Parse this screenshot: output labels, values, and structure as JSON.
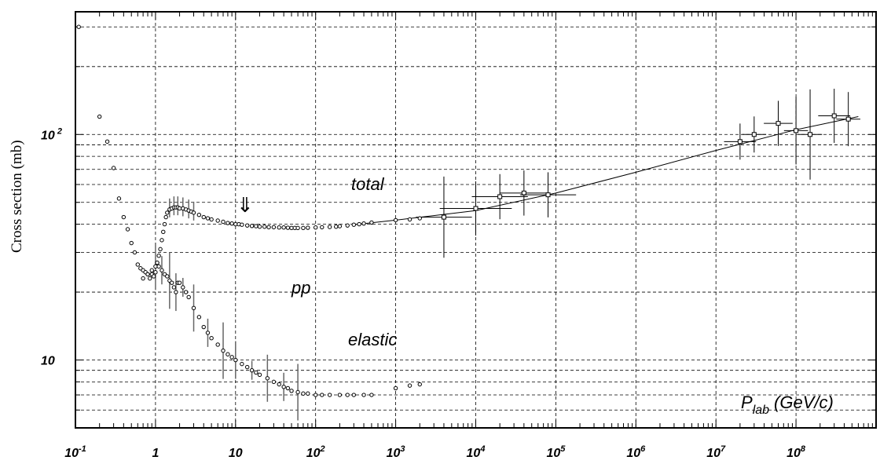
{
  "chart_data": {
    "type": "scatter",
    "ylabel": "Cross section (mb)",
    "xscale": "log",
    "yscale": "log",
    "xlim": [
      0.1,
      1000000000
    ],
    "ylim": [
      5,
      350
    ],
    "grid": true,
    "x_ticks": [
      {
        "base": "10",
        "exp": "-1"
      },
      {
        "base": "1",
        "exp": ""
      },
      {
        "base": "10",
        "exp": ""
      },
      {
        "base": "10",
        "exp": "2"
      },
      {
        "base": "10",
        "exp": "3"
      },
      {
        "base": "10",
        "exp": "4"
      },
      {
        "base": "10",
        "exp": "5"
      },
      {
        "base": "10",
        "exp": "6"
      },
      {
        "base": "10",
        "exp": "7"
      },
      {
        "base": "10",
        "exp": "8"
      }
    ],
    "y_ticks": [
      {
        "base": "10",
        "exp": " 2",
        "value": 100
      },
      {
        "base": "10",
        "exp": "",
        "value": 10
      }
    ],
    "annotations": {
      "total": "total",
      "pp": "pp",
      "elastic": "elastic",
      "xaxis_var": "P",
      "xaxis_sub": "lab",
      "xaxis_unit": "(GeV/c)",
      "arrow": "⇓"
    },
    "series": [
      {
        "key": "total",
        "points": [
          [
            0.11,
            300
          ],
          [
            0.2,
            120
          ],
          [
            0.25,
            93
          ],
          [
            0.3,
            71
          ],
          [
            0.35,
            52
          ],
          [
            0.4,
            43
          ],
          [
            0.45,
            38
          ],
          [
            0.5,
            33
          ],
          [
            0.55,
            30
          ],
          [
            0.6,
            26.5
          ],
          [
            0.65,
            25.5
          ],
          [
            0.7,
            25
          ],
          [
            0.75,
            24.5
          ],
          [
            0.8,
            24
          ],
          [
            0.85,
            23
          ],
          [
            0.9,
            24
          ],
          [
            0.95,
            23.5
          ],
          [
            1.0,
            24.5
          ],
          [
            1.05,
            27
          ],
          [
            1.1,
            29
          ],
          [
            1.15,
            31
          ],
          [
            1.2,
            34
          ],
          [
            1.25,
            37
          ],
          [
            1.3,
            40
          ],
          [
            1.35,
            43
          ],
          [
            1.4,
            45
          ],
          [
            1.5,
            46.5
          ],
          [
            1.6,
            47
          ],
          [
            1.7,
            47.5
          ],
          [
            1.8,
            47.5
          ],
          [
            1.9,
            47.5
          ],
          [
            2.0,
            47
          ],
          [
            2.2,
            47
          ],
          [
            2.4,
            46.5
          ],
          [
            2.6,
            46
          ],
          [
            2.8,
            45.5
          ],
          [
            3.0,
            45
          ],
          [
            3.5,
            44
          ],
          [
            4.0,
            43
          ],
          [
            4.5,
            42.5
          ],
          [
            5,
            42
          ],
          [
            6,
            41.5
          ],
          [
            7,
            41
          ],
          [
            8,
            40.5
          ],
          [
            9,
            40.3
          ],
          [
            10,
            40
          ],
          [
            11,
            40
          ],
          [
            12,
            39.8
          ],
          [
            14,
            39.5
          ],
          [
            16,
            39.3
          ],
          [
            18,
            39.2
          ],
          [
            20,
            39
          ],
          [
            23,
            39
          ],
          [
            26,
            38.8
          ],
          [
            30,
            38.8
          ],
          [
            35,
            38.7
          ],
          [
            40,
            38.7
          ],
          [
            45,
            38.6
          ],
          [
            50,
            38.5
          ],
          [
            55,
            38.5
          ],
          [
            60,
            38.5
          ],
          [
            70,
            38.5
          ],
          [
            80,
            38.6
          ],
          [
            100,
            38.7
          ],
          [
            120,
            38.8
          ],
          [
            150,
            38.9
          ],
          [
            180,
            39
          ],
          [
            200,
            39.2
          ],
          [
            250,
            39.5
          ],
          [
            300,
            39.8
          ],
          [
            350,
            40
          ],
          [
            400,
            40.3
          ],
          [
            500,
            40.7
          ],
          [
            1000,
            41.7
          ],
          [
            1500,
            42
          ],
          [
            2000,
            42.5
          ],
          [
            4000,
            43
          ],
          [
            10000,
            47
          ],
          [
            20000,
            53
          ],
          [
            40000,
            55
          ],
          [
            80000,
            54
          ]
        ]
      },
      {
        "key": "elastic",
        "points": [
          [
            0.7,
            23
          ],
          [
            0.8,
            24
          ],
          [
            0.9,
            25
          ],
          [
            1.0,
            26
          ],
          [
            1.05,
            27
          ],
          [
            1.1,
            26
          ],
          [
            1.2,
            25
          ],
          [
            1.3,
            24
          ],
          [
            1.4,
            23.5
          ],
          [
            1.5,
            22.5
          ],
          [
            1.6,
            22
          ],
          [
            1.7,
            21
          ],
          [
            1.8,
            20
          ],
          [
            1.9,
            22
          ],
          [
            2.0,
            22
          ],
          [
            2.2,
            21
          ],
          [
            2.4,
            20
          ],
          [
            2.6,
            19
          ],
          [
            3.0,
            17
          ],
          [
            3.5,
            15.5
          ],
          [
            4,
            14
          ],
          [
            4.5,
            13.2
          ],
          [
            5,
            12.5
          ],
          [
            6,
            11.7
          ],
          [
            7,
            11
          ],
          [
            8,
            10.6
          ],
          [
            9,
            10.3
          ],
          [
            10,
            10
          ],
          [
            12,
            9.6
          ],
          [
            14,
            9.3
          ],
          [
            16,
            9
          ],
          [
            18,
            8.8
          ],
          [
            20,
            8.6
          ],
          [
            25,
            8.3
          ],
          [
            30,
            8
          ],
          [
            35,
            7.8
          ],
          [
            40,
            7.6
          ],
          [
            45,
            7.5
          ],
          [
            50,
            7.3
          ],
          [
            60,
            7.2
          ],
          [
            70,
            7.1
          ],
          [
            80,
            7.1
          ],
          [
            100,
            7
          ],
          [
            120,
            7
          ],
          [
            150,
            7
          ],
          [
            200,
            7
          ],
          [
            250,
            7
          ],
          [
            300,
            7
          ],
          [
            400,
            7
          ],
          [
            500,
            7
          ],
          [
            1000,
            7.5
          ],
          [
            1500,
            7.7
          ],
          [
            2000,
            7.8
          ]
        ]
      }
    ],
    "fit_line": [
      [
        300,
        39.8
      ],
      [
        1000,
        41.7
      ],
      [
        10000,
        46
      ],
      [
        100000,
        55
      ],
      [
        1000000,
        68
      ],
      [
        10000000,
        85
      ],
      [
        100000000,
        105
      ],
      [
        600000000,
        120
      ]
    ],
    "large_error_points": [
      [
        4000,
        43,
        0.35,
        0.18
      ],
      [
        10000,
        47,
        0.45,
        0.12
      ],
      [
        20000,
        53,
        0.35,
        0.1
      ],
      [
        40000,
        55,
        0.3,
        0.1
      ],
      [
        80000,
        54,
        0.35,
        0.1
      ],
      [
        20000000,
        93,
        0.2,
        0.08
      ],
      [
        30000000,
        100,
        0.15,
        0.08
      ],
      [
        60000000,
        112,
        0.18,
        0.1
      ],
      [
        100000000,
        104,
        0.15,
        0.15
      ],
      [
        150000000,
        100,
        0.15,
        0.2
      ],
      [
        300000000,
        121,
        0.2,
        0.12
      ],
      [
        450000000,
        117,
        0.15,
        0.12
      ]
    ]
  }
}
